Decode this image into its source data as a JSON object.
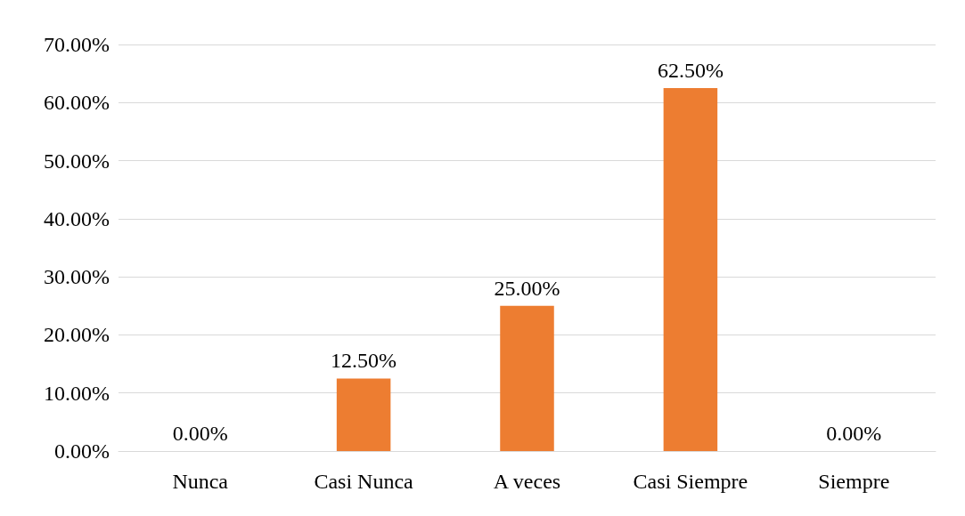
{
  "chart_data": {
    "type": "bar",
    "categories": [
      "Nunca",
      "Casi Nunca",
      "A veces",
      "Casi Siempre",
      "Siempre"
    ],
    "values": [
      0,
      12.5,
      25,
      62.5,
      0
    ],
    "value_labels": [
      "0.00%",
      "12.50%",
      "25.00%",
      "62.50%",
      "0.00%"
    ],
    "color": "#ed7d31",
    "ylim": [
      0,
      70
    ],
    "yticks": [
      {
        "value": 0,
        "label": "0.00%"
      },
      {
        "value": 10,
        "label": "10.00%"
      },
      {
        "value": 20,
        "label": "20.00%"
      },
      {
        "value": 30,
        "label": "30.00%"
      },
      {
        "value": 40,
        "label": "40.00%"
      },
      {
        "value": 50,
        "label": "50.00%"
      },
      {
        "value": 60,
        "label": "60.00%"
      },
      {
        "value": 70,
        "label": "70.00%"
      }
    ],
    "grid": true
  }
}
